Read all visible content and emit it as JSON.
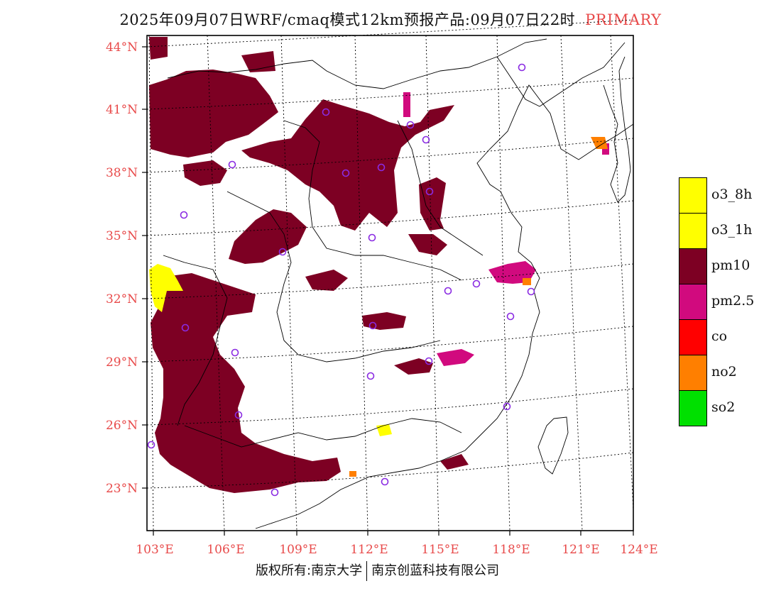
{
  "map": {
    "title": "2025年09月07日WRF/cmaq模式12km预报产品:09月07日22时",
    "title_tag": "PRIMARY",
    "lat_labels": [
      "44°N",
      "41°N",
      "38°N",
      "35°N",
      "32°N",
      "29°N",
      "26°N",
      "23°N"
    ],
    "lon_labels": [
      "103°E",
      "106°E",
      "109°E",
      "112°E",
      "115°E",
      "118°E",
      "121°E",
      "124°E"
    ],
    "footer_left": "版权所有:南京大学",
    "footer_right": "南京创蓝科技有限公司",
    "legend": [
      {
        "label": "o3_8h",
        "color": "#ffff00"
      },
      {
        "label": "o3_1h",
        "color": "#ffff00"
      },
      {
        "label": "pm10",
        "color": "#7d0023"
      },
      {
        "label": "pm2.5",
        "color": "#d10a7e"
      },
      {
        "label": "co",
        "color": "#ff0000"
      },
      {
        "label": "no2",
        "color": "#ff7f00"
      },
      {
        "label": "so2",
        "color": "#00e000"
      }
    ],
    "colors": {
      "axis_label": "#e84a4a",
      "city_marker": "#8a2be2",
      "boundary": "#000000"
    }
  }
}
